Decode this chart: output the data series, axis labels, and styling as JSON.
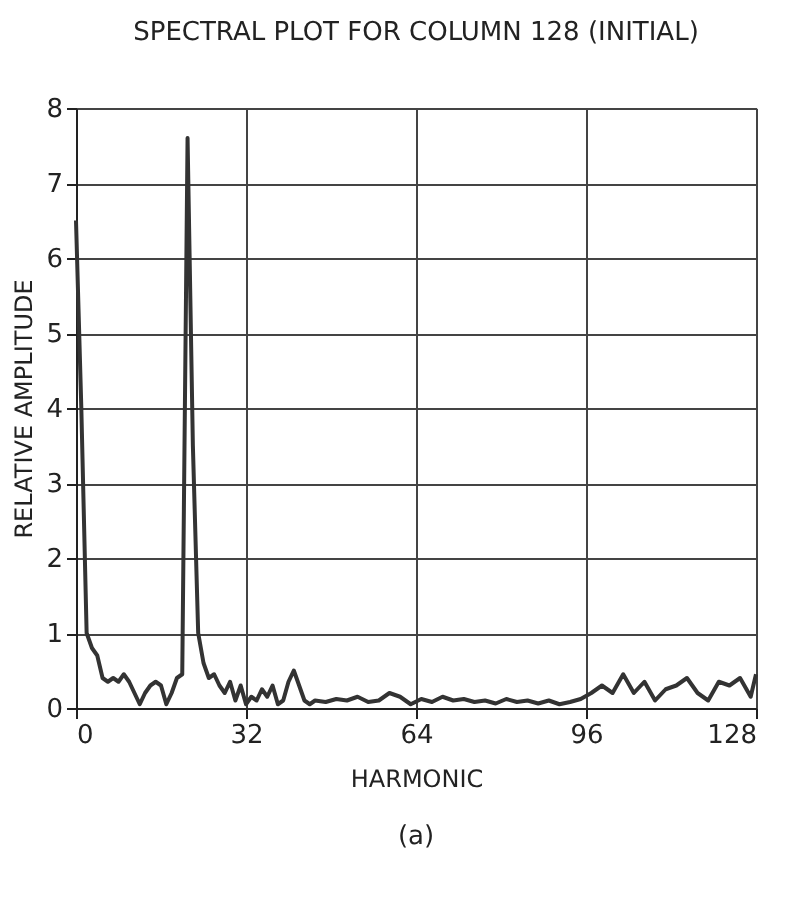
{
  "chart_data": {
    "type": "line",
    "title": "SPECTRAL PLOT FOR COLUMN 128 (INITIAL)",
    "xlabel": "HARMONIC",
    "ylabel": "RELATIVE AMPLITUDE",
    "annotations": [
      "(a)"
    ],
    "x": [
      0,
      1,
      2,
      3,
      4,
      5,
      6,
      7,
      8,
      9,
      10,
      11,
      12,
      13,
      14,
      15,
      16,
      17,
      18,
      19,
      20,
      21,
      22,
      23,
      24,
      25,
      26,
      27,
      28,
      29,
      30,
      31,
      32,
      33,
      34,
      35,
      36,
      37,
      38,
      39,
      40,
      41,
      42,
      43,
      44,
      45,
      47,
      49,
      51,
      53,
      55,
      57,
      59,
      61,
      63,
      65,
      67,
      69,
      71,
      73,
      75,
      77,
      79,
      81,
      83,
      85,
      87,
      89,
      91,
      93,
      95,
      97,
      99,
      101,
      103,
      105,
      107,
      109,
      111,
      113,
      115,
      117,
      119,
      121,
      123,
      125,
      127,
      128
    ],
    "series": [
      {
        "color": "#333333",
        "values": [
          6.5,
          4.0,
          1.0,
          0.8,
          0.7,
          0.4,
          0.35,
          0.4,
          0.35,
          0.45,
          0.35,
          0.2,
          0.05,
          0.2,
          0.3,
          0.35,
          0.3,
          0.05,
          0.2,
          0.4,
          0.45,
          7.6,
          3.5,
          1.0,
          0.6,
          0.4,
          0.45,
          0.3,
          0.2,
          0.35,
          0.1,
          0.3,
          0.05,
          0.15,
          0.1,
          0.25,
          0.15,
          0.3,
          0.05,
          0.1,
          0.35,
          0.5,
          0.3,
          0.1,
          0.05,
          0.1,
          0.08,
          0.12,
          0.1,
          0.15,
          0.08,
          0.1,
          0.2,
          0.15,
          0.05,
          0.12,
          0.08,
          0.15,
          0.1,
          0.12,
          0.08,
          0.1,
          0.06,
          0.12,
          0.08,
          0.1,
          0.06,
          0.1,
          0.05,
          0.08,
          0.12,
          0.2,
          0.3,
          0.2,
          0.45,
          0.2,
          0.35,
          0.1,
          0.25,
          0.3,
          0.4,
          0.2,
          0.1,
          0.35,
          0.3,
          0.4,
          0.15,
          0.45
        ]
      }
    ],
    "xlim": [
      0,
      128
    ],
    "xticks": [
      0,
      32,
      64,
      96,
      128
    ],
    "ylim": [
      0,
      8
    ],
    "yticks": [
      0,
      1,
      2,
      3,
      4,
      5,
      6,
      7,
      8
    ],
    "grid": true,
    "marker": "none",
    "line_style": "solid"
  }
}
